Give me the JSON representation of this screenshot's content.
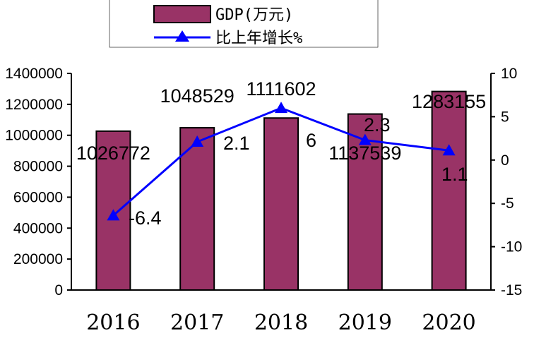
{
  "chart_data": {
    "type": "bar",
    "categories": [
      "2016",
      "2017",
      "2018",
      "2019",
      "2020"
    ],
    "series": [
      {
        "name": "GDP(万元)",
        "type": "bar",
        "axis": "left",
        "values": [
          1026772,
          1048529,
          1111602,
          1137539,
          1283155
        ],
        "labels": [
          "1026772",
          "1048529",
          "1111602",
          "1137539",
          "1283155"
        ],
        "color": "#993366"
      },
      {
        "name": "比上年增长%",
        "type": "line",
        "axis": "right",
        "values": [
          -6.4,
          2.1,
          6,
          2.3,
          1.1
        ],
        "labels": [
          "-6.4",
          "2.1",
          "6",
          "2.3",
          "1.1"
        ],
        "color": "#0000ff"
      }
    ],
    "y_left": {
      "ylim": [
        0,
        1400000
      ],
      "ticks": [
        "0",
        "200000",
        "400000",
        "600000",
        "800000",
        "1000000",
        "1200000",
        "1400000"
      ]
    },
    "y_right": {
      "ylim": [
        -15,
        10
      ],
      "ticks": [
        "-15",
        "-10",
        "-5",
        "0",
        "5",
        "10"
      ]
    },
    "grid": false,
    "legend_position": "top-center"
  }
}
